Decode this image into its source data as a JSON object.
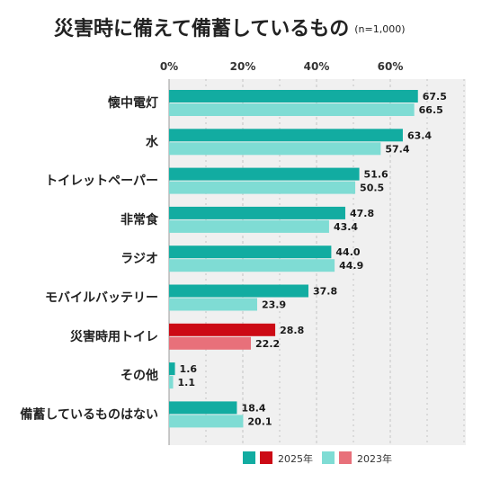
{
  "title": "災害時に備えて備蓄しているもの",
  "note": "(n=1,000)",
  "chart_data": {
    "type": "bar",
    "orientation": "horizontal",
    "categories": [
      "懐中電灯",
      "水",
      "トイレットペーパー",
      "非常食",
      "ラジオ",
      "モバイルバッテリー",
      "災害時用トイレ",
      "その他",
      "備蓄しているものはない"
    ],
    "highlight_category": "災害時用トイレ",
    "series": [
      {
        "name": "2025年",
        "values": [
          67.5,
          63.4,
          51.6,
          47.8,
          44.0,
          37.8,
          28.8,
          1.6,
          18.4
        ],
        "value_labels": [
          "67.5",
          "63.4",
          "51.6",
          "47.8",
          "44.0",
          "37.8",
          "28.8",
          "1.6",
          "18.4"
        ]
      },
      {
        "name": "2023年",
        "values": [
          66.5,
          57.4,
          50.5,
          43.4,
          44.9,
          23.9,
          22.2,
          1.1,
          20.1
        ],
        "value_labels": [
          "66.5",
          "57.4",
          "50.5",
          "43.4",
          "44.9",
          "23.9",
          "22.2",
          "1.1",
          "20.1"
        ]
      }
    ],
    "x_ticks": [
      "0%",
      "20%",
      "40%",
      "60%"
    ],
    "x_tick_values": [
      0,
      20,
      40,
      60
    ],
    "xlim": [
      0,
      80
    ],
    "grid": true,
    "legend_position": "bottom",
    "colors": {
      "2025_normal": "#12aca1",
      "2023_normal": "#7fdcd4",
      "2025_highlight": "#cc0a15",
      "2023_highlight": "#e8707a",
      "highlight_text": "#cc0a15",
      "plot_background": "#f0f0f0"
    }
  }
}
